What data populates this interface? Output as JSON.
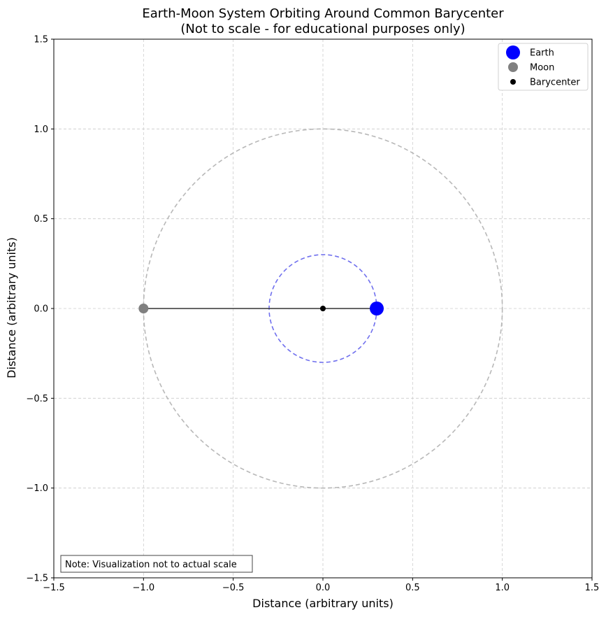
{
  "chart_data": {
    "type": "scatter",
    "title": "Earth-Moon System Orbiting Around Common Barycenter",
    "subtitle": "(Not to scale - for educational purposes only)",
    "xlabel": "Distance (arbitrary units)",
    "ylabel": "Distance (arbitrary units)",
    "xlim": [
      -1.5,
      1.5
    ],
    "ylim": [
      -1.5,
      1.5
    ],
    "xticks": [
      -1.5,
      -1.0,
      -0.5,
      0.0,
      0.5,
      1.0,
      1.5
    ],
    "yticks": [
      -1.5,
      -1.0,
      -0.5,
      0.0,
      0.5,
      1.0,
      1.5
    ],
    "xtick_labels": [
      "−1.5",
      "−1.0",
      "−0.5",
      "0.0",
      "0.5",
      "1.0",
      "1.5"
    ],
    "ytick_labels": [
      "−1.5",
      "−1.0",
      "−0.5",
      "0.0",
      "0.5",
      "1.0",
      "1.5"
    ],
    "grid": true,
    "legend_position": "top-right",
    "bodies": [
      {
        "name": "Earth",
        "x": 0.3,
        "y": 0.0,
        "color": "#0000ff",
        "relative_size": "large"
      },
      {
        "name": "Moon",
        "x": -1.0,
        "y": 0.0,
        "color": "#808080",
        "relative_size": "medium"
      },
      {
        "name": "Barycenter",
        "x": 0.0,
        "y": 0.0,
        "color": "#000000",
        "relative_size": "small"
      }
    ],
    "orbits": [
      {
        "name": "Earth orbit",
        "center": [
          0,
          0
        ],
        "radius": 0.3,
        "color": "#7070ee",
        "style": "dashed"
      },
      {
        "name": "Moon orbit",
        "center": [
          0,
          0
        ],
        "radius": 1.0,
        "color": "#b8b8b8",
        "style": "dashed"
      }
    ],
    "connector": {
      "from": [
        -1.0,
        0.0
      ],
      "to": [
        0.3,
        0.0
      ],
      "color": "#333333"
    },
    "annotation": "Note: Visualization not to actual scale"
  }
}
